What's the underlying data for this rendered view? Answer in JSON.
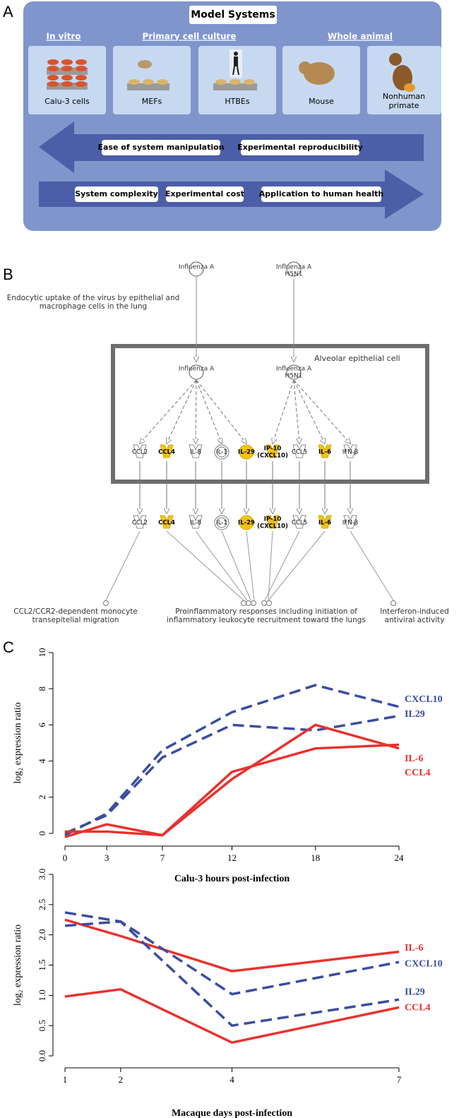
{
  "model_systems": {
    "letter": "A",
    "title": "Model Systems",
    "groups": [
      "In vitro",
      "Primary cell culture",
      "Whole animal"
    ],
    "systems": [
      [
        "Calu-3 cells"
      ],
      [
        "MEFs"
      ],
      [
        "HTBEs"
      ],
      [
        "Mouse"
      ],
      [
        "Nonhuman",
        "primate"
      ]
    ],
    "left_arrow": [
      "Ease of system manipulation",
      "Experimental reproducibility"
    ],
    "right_arrow": [
      "System complexity",
      "Experimental cost",
      "Application to human health"
    ]
  },
  "pathway": {
    "letter": "B",
    "viruses": [
      [
        "Influenza A"
      ],
      [
        "Influenza A",
        "H5N1"
      ]
    ],
    "uptake": [
      "Endocytic uptake of the virus by epithelial and",
      "macrophage cells in the lung"
    ],
    "compartment": "Alveolar epithelial cell",
    "molecules": [
      {
        "label": [
          "CCL2"
        ],
        "highlighted": false,
        "shape": "cytokine"
      },
      {
        "label": [
          "CCL4"
        ],
        "highlighted": true,
        "shape": "cytokine"
      },
      {
        "label": [
          "IL-8"
        ],
        "highlighted": false,
        "shape": "cytokine"
      },
      {
        "label": [
          "IL-1"
        ],
        "highlighted": false,
        "shape": "circle"
      },
      {
        "label": [
          "IL-29"
        ],
        "highlighted": true,
        "shape": "circle"
      },
      {
        "label": [
          "IP-10",
          "(CXCL10)"
        ],
        "highlighted": true,
        "shape": "cytokine"
      },
      {
        "label": [
          "CCL5"
        ],
        "highlighted": false,
        "shape": "cytokine"
      },
      {
        "label": [
          "IL-6"
        ],
        "highlighted": true,
        "shape": "cytokine"
      },
      {
        "label": [
          "IFN-β"
        ],
        "highlighted": false,
        "shape": "cytokine"
      }
    ],
    "outcomes": [
      [
        "CCL2/CCR2-dependent monocyte",
        "transepitelial migration"
      ],
      [
        "Proinflammatory responses including initiation of",
        "inflammatory leukocyte recruitment toward the lungs"
      ],
      [
        "Interferon-induced",
        "antiviral activity"
      ]
    ]
  },
  "panel_c": {
    "letter": "C"
  },
  "chart_data": [
    {
      "type": "line",
      "xlabel": "Calu-3 hours post-infection",
      "ylabel": "log₂ expression ratio",
      "x": [
        0,
        3,
        7,
        12,
        18,
        24
      ],
      "xlim": [
        0,
        24
      ],
      "xticks": [
        0,
        3,
        7,
        12,
        18,
        24
      ],
      "ylim": [
        0,
        10
      ],
      "yticks": [
        0,
        2,
        4,
        6,
        8,
        10
      ],
      "series": [
        {
          "name": "CXCL10",
          "color": "#3b4da0",
          "dash": true,
          "values": [
            -0.1,
            1.1,
            4.6,
            6.7,
            8.2,
            7.0
          ]
        },
        {
          "name": "IL29",
          "color": "#3b4da0",
          "dash": true,
          "values": [
            0.0,
            1.0,
            4.2,
            6.0,
            5.7,
            6.5
          ]
        },
        {
          "name": "IL-6",
          "color": "#e8322e",
          "dash": false,
          "values": [
            0.1,
            0.1,
            -0.1,
            3.0,
            6.0,
            4.7
          ]
        },
        {
          "name": "CCL4",
          "color": "#e8322e",
          "dash": false,
          "values": [
            -0.2,
            0.5,
            -0.1,
            3.4,
            4.7,
            4.9
          ]
        }
      ]
    },
    {
      "type": "line",
      "xlabel": "Macaque days post-infection",
      "ylabel": "log₂ expression ratio",
      "x": [
        1,
        2,
        4,
        7
      ],
      "xlim": [
        1,
        7
      ],
      "xticks": [
        1,
        2,
        4,
        7
      ],
      "ylim": [
        0,
        3
      ],
      "yticks": [
        {
          "value": 0,
          "label": "0.0"
        },
        0.5,
        {
          "value": 1,
          "label": "1.0"
        },
        1.5,
        {
          "value": 2,
          "label": "2.0"
        },
        2.5,
        {
          "value": 3,
          "label": "3.0"
        }
      ],
      "series": [
        {
          "name": "IL-6",
          "color": "#e8322e",
          "dash": false,
          "values": [
            2.25,
            1.98,
            1.4,
            1.72
          ]
        },
        {
          "name": "CXCL10",
          "color": "#3b4da0",
          "dash": true,
          "values": [
            2.37,
            2.22,
            1.02,
            1.55
          ]
        },
        {
          "name": "IL29",
          "color": "#3b4da0",
          "dash": true,
          "values": [
            2.15,
            2.22,
            0.5,
            0.93
          ]
        },
        {
          "name": "CCL4",
          "color": "#e8322e",
          "dash": false,
          "values": [
            0.98,
            1.1,
            0.22,
            0.8
          ]
        }
      ]
    }
  ]
}
